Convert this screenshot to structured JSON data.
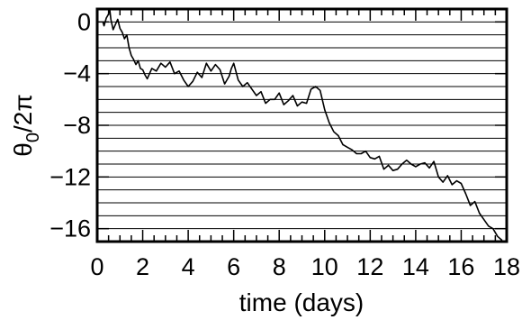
{
  "chart_data": {
    "type": "line",
    "title": "",
    "xlabel": "time (days)",
    "ylabel_main": "θ",
    "ylabel_sub": "0",
    "ylabel_tail": "/2π",
    "xlim": [
      0,
      18
    ],
    "ylim": [
      -17,
      1
    ],
    "x_ticks": [
      "0",
      "2",
      "4",
      "6",
      "8",
      "10",
      "12",
      "14",
      "16",
      "18"
    ],
    "y_ticks": [
      {
        "value": 0,
        "label": "0"
      },
      {
        "value": -4,
        "label": "−4"
      },
      {
        "value": -8,
        "label": "−8"
      },
      {
        "value": -12,
        "label": "−12"
      },
      {
        "value": -16,
        "label": "−16"
      }
    ],
    "horizontal_grid_step": 1,
    "line_color": "#000000",
    "series": [
      {
        "x": [
          0.25,
          0.3,
          0.4,
          0.5,
          0.55,
          0.6,
          0.7,
          0.8,
          0.9,
          1.0,
          1.1,
          1.2,
          1.3,
          1.4,
          1.5,
          1.6,
          1.7,
          1.8,
          1.9,
          2.0,
          2.1,
          2.2,
          2.4,
          2.6,
          2.8,
          3.0,
          3.2,
          3.4,
          3.6,
          3.8,
          4.0,
          4.2,
          4.4,
          4.6,
          4.8,
          5.0,
          5.2,
          5.4,
          5.6,
          5.8,
          5.9,
          6.0,
          6.2,
          6.4,
          6.6,
          6.8,
          7.0,
          7.2,
          7.4,
          7.6,
          7.8,
          8.0,
          8.2,
          8.4,
          8.6,
          8.8,
          9.0,
          9.2,
          9.4,
          9.6,
          9.8,
          10.0,
          10.2,
          10.4,
          10.6,
          10.8,
          11.0,
          11.2,
          11.4,
          11.6,
          11.8,
          12.0,
          12.2,
          12.4,
          12.6,
          12.8,
          13.0,
          13.2,
          13.4,
          13.6,
          13.8,
          14.0,
          14.2,
          14.4,
          14.6,
          14.8,
          15.0,
          15.2,
          15.4,
          15.6,
          15.8,
          16.0,
          16.2,
          16.4,
          16.6,
          16.8,
          17.0,
          17.2,
          17.4,
          17.6,
          17.8
        ],
        "y": [
          0.0,
          -0.3,
          0.3,
          0.6,
          1.0,
          0.2,
          -0.6,
          -0.2,
          0.2,
          -0.5,
          -0.8,
          -1.3,
          -1.0,
          -2.0,
          -2.6,
          -2.9,
          -3.3,
          -3.0,
          -3.6,
          -3.7,
          -4.1,
          -4.4,
          -3.6,
          -3.8,
          -3.2,
          -3.5,
          -3.1,
          -4.0,
          -3.8,
          -4.5,
          -5.0,
          -4.6,
          -3.9,
          -4.3,
          -3.2,
          -3.8,
          -3.3,
          -3.7,
          -4.8,
          -4.2,
          -3.6,
          -3.2,
          -4.5,
          -5.0,
          -4.7,
          -5.2,
          -5.7,
          -5.4,
          -6.3,
          -6.0,
          -6.0,
          -5.5,
          -6.4,
          -6.1,
          -5.7,
          -6.5,
          -6.2,
          -6.3,
          -5.2,
          -5.0,
          -5.3,
          -6.8,
          -7.8,
          -8.5,
          -8.8,
          -9.5,
          -9.7,
          -9.9,
          -10.2,
          -10.2,
          -10.0,
          -10.5,
          -10.6,
          -10.4,
          -11.4,
          -11.1,
          -11.5,
          -11.4,
          -11.0,
          -10.7,
          -11.0,
          -11.2,
          -11.0,
          -10.9,
          -11.3,
          -10.8,
          -12.0,
          -12.4,
          -11.9,
          -12.6,
          -12.3,
          -12.5,
          -13.3,
          -14.2,
          -13.9,
          -14.8,
          -15.3,
          -15.8,
          -16.0,
          -16.6,
          -16.9
        ]
      }
    ]
  }
}
